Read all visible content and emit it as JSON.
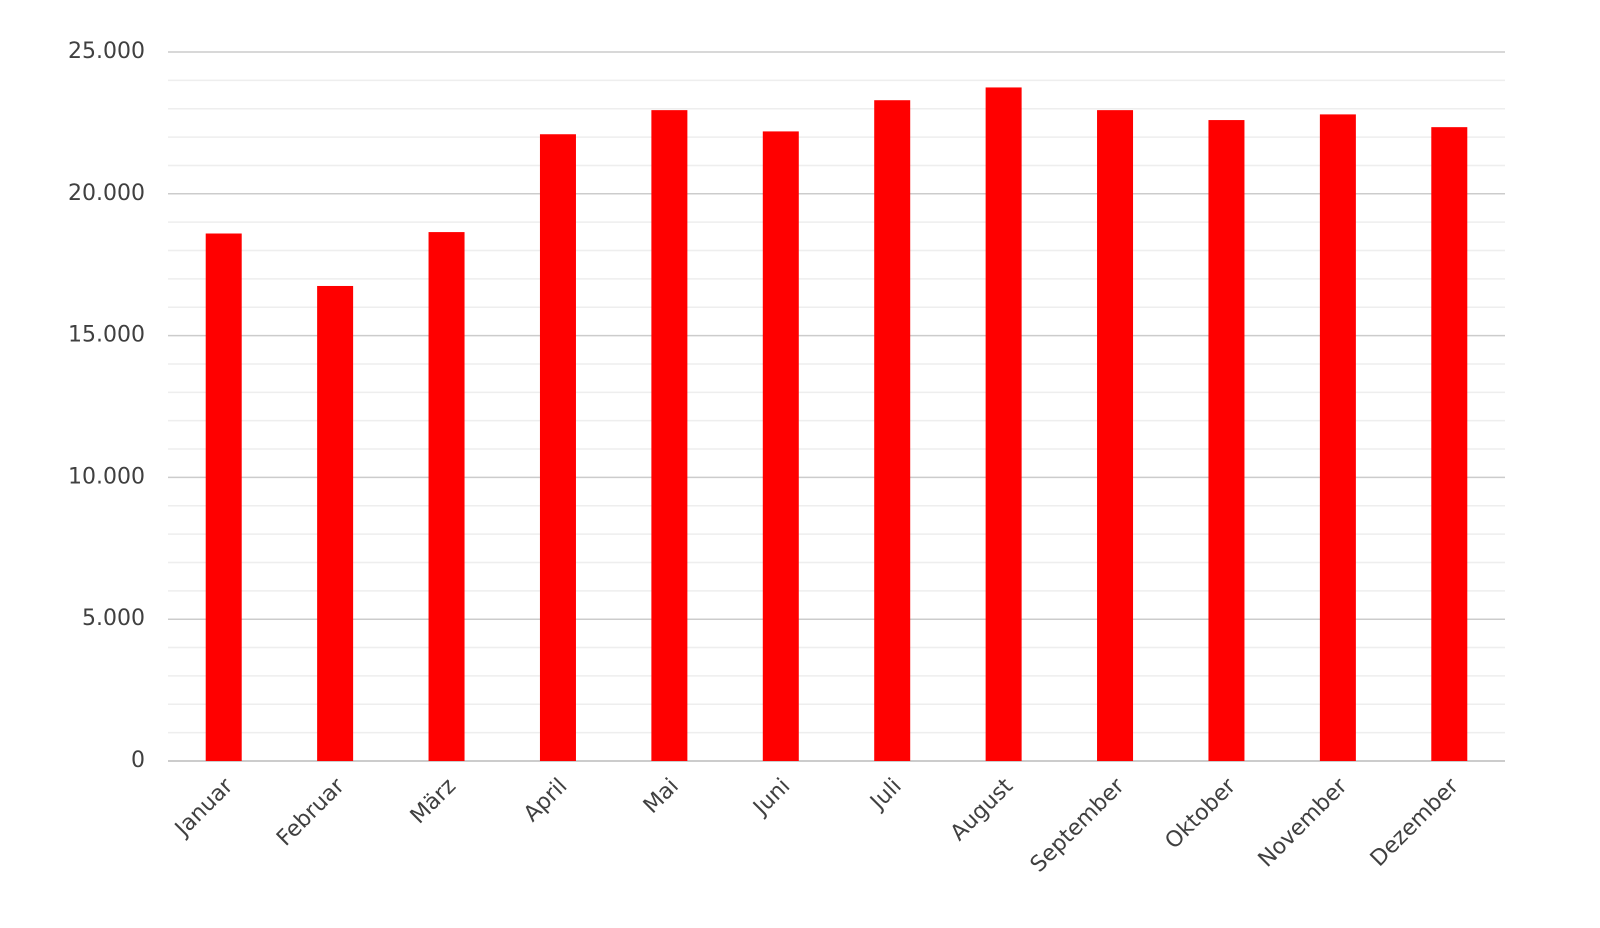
{
  "chart_data": {
    "type": "bar",
    "categories": [
      "Januar",
      "Februar",
      "März",
      "April",
      "Mai",
      "Juni",
      "Juli",
      "August",
      "September",
      "Oktober",
      "November",
      "Dezember"
    ],
    "values": [
      18600,
      16750,
      18650,
      22100,
      22950,
      22200,
      23300,
      23750,
      22950,
      22600,
      22800,
      22350
    ],
    "color": "#ff0000",
    "ylim": [
      0,
      25000
    ],
    "yticks": [
      0,
      {
        "value": 5000,
        "label": "5.000"
      },
      {
        "value": 10000,
        "label": "10.000"
      },
      {
        "value": 15000,
        "label": "15.000"
      },
      {
        "value": 20000,
        "label": "20.000"
      },
      {
        "value": 25000,
        "label": "25.000"
      }
    ],
    "yminorticks": [
      1000,
      2000,
      3000,
      4000,
      6000,
      7000,
      8000,
      9000,
      11000,
      12000,
      13000,
      14000,
      16000,
      17000,
      18000,
      19000,
      21000,
      22000,
      23000,
      24000
    ],
    "grid": true
  }
}
